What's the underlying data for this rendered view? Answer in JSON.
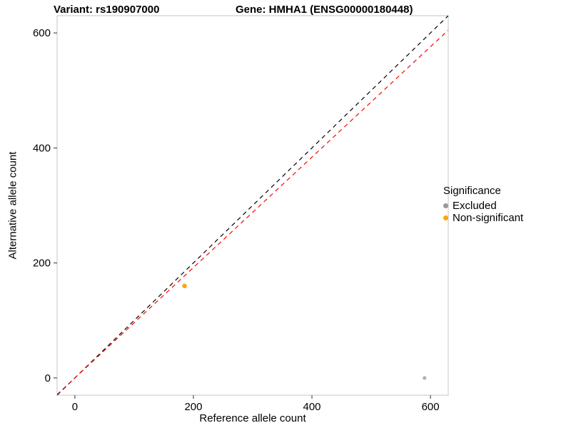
{
  "chart_data": {
    "type": "scatter",
    "title_left": "Variant: rs190907000",
    "title_right": "Gene: HMHA1 (ENSG00000180448)",
    "xlabel": "Reference allele count",
    "ylabel": "Alternative allele count",
    "xlim": [
      -30,
      630
    ],
    "ylim": [
      -30,
      630
    ],
    "x_ticks": [
      0,
      200,
      400,
      600
    ],
    "y_ticks": [
      0,
      200,
      400,
      600
    ],
    "grid": false,
    "panel_border_color": "#c4c4c4",
    "lines": [
      {
        "name": "identity",
        "style": "dashed",
        "color": "#000000",
        "slope": 1,
        "intercept": 0
      },
      {
        "name": "expected-ratio",
        "style": "dashed",
        "color": "#ff0000",
        "slope": 0.96,
        "intercept": 0
      }
    ],
    "points": [
      {
        "x": 185,
        "y": 160,
        "group": "Non-significant",
        "color": "#ffa500",
        "r": 3.2
      },
      {
        "x": 590,
        "y": 0,
        "group": "Excluded",
        "color": "#b0b0b0",
        "r": 2.6
      }
    ],
    "legend": {
      "title": "Significance",
      "position": "right",
      "items": [
        {
          "label": "Excluded",
          "color": "#999999"
        },
        {
          "label": "Non-significant",
          "color": "#ffa500"
        }
      ]
    }
  }
}
